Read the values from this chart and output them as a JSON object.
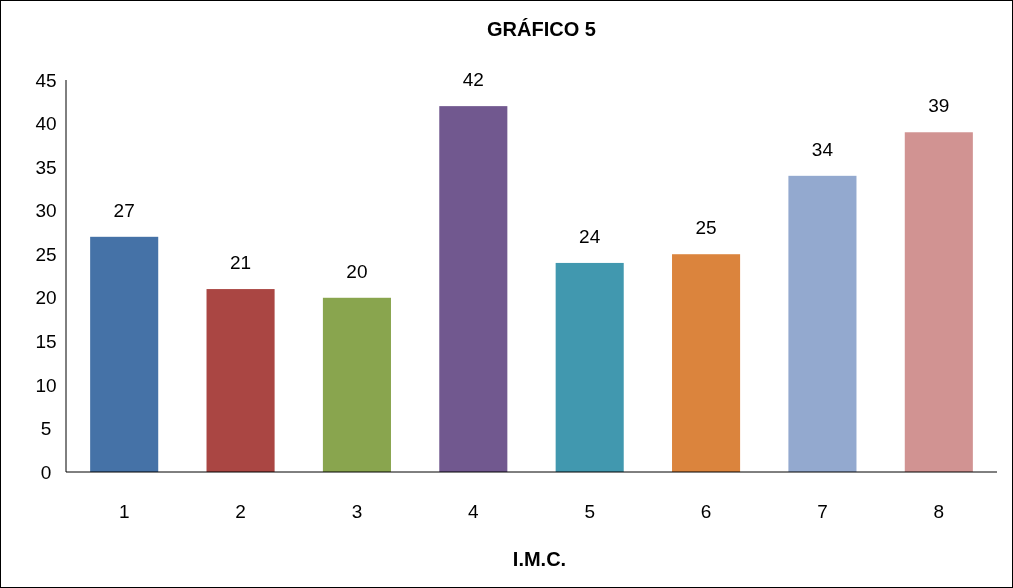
{
  "chart_data": {
    "type": "bar",
    "title": "GRÁFICO 5",
    "xlabel": "I.M.C.",
    "categories": [
      "1",
      "2",
      "3",
      "4",
      "5",
      "6",
      "7",
      "8"
    ],
    "values": [
      27,
      21,
      20,
      42,
      24,
      25,
      34,
      39
    ],
    "colors": [
      "#4572a7",
      "#aa4643",
      "#89a54e",
      "#71588f",
      "#4198af",
      "#db843d",
      "#93a9cf",
      "#d19392"
    ],
    "ylim": [
      0,
      45
    ],
    "yticks": [
      0,
      5,
      10,
      15,
      20,
      25,
      30,
      35,
      40,
      45
    ],
    "data_labels": true
  }
}
